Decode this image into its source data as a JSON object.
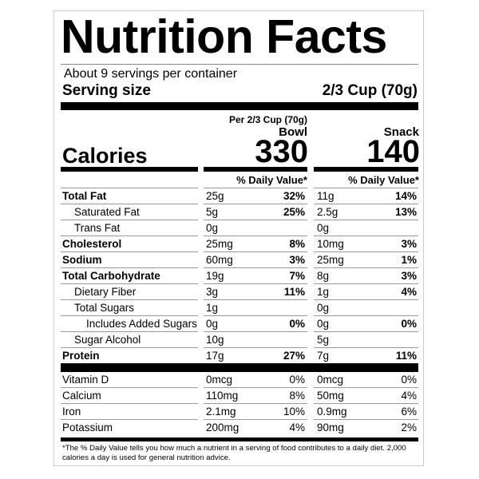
{
  "header": {
    "title": "Nutrition Facts",
    "servings": "About 9 servings per container",
    "serving_size_label": "Serving size",
    "serving_size": "2/3 Cup (70g)"
  },
  "calories_label": "Calories",
  "columns": [
    {
      "per": "Per 2/3 Cup (70g)",
      "name": "Bowl",
      "calories": "330",
      "dv_header": "% Daily Value*"
    },
    {
      "name": "Snack",
      "calories": "140",
      "dv_header": "% Daily Value*"
    }
  ],
  "rows": [
    {
      "label": "Total Fat",
      "bold": true,
      "indent": 0,
      "values": [
        [
          "25g",
          "32%"
        ],
        [
          "11g",
          "14%"
        ]
      ]
    },
    {
      "label": "Saturated Fat",
      "bold": false,
      "indent": 1,
      "values": [
        [
          "5g",
          "25%"
        ],
        [
          "2.5g",
          "13%"
        ]
      ]
    },
    {
      "label": "Trans Fat",
      "bold": false,
      "indent": 1,
      "values": [
        [
          "0g"
        ],
        [
          "0g"
        ]
      ]
    },
    {
      "label": "Cholesterol",
      "bold": true,
      "indent": 0,
      "values": [
        [
          "25mg",
          "8%"
        ],
        [
          "10mg",
          "3%"
        ]
      ]
    },
    {
      "label": "Sodium",
      "bold": true,
      "indent": 0,
      "values": [
        [
          "60mg",
          "3%"
        ],
        [
          "25mg",
          "1%"
        ]
      ]
    },
    {
      "label": "Total Carbohydrate",
      "bold": true,
      "indent": 0,
      "values": [
        [
          "19g",
          "7%"
        ],
        [
          "8g",
          "3%"
        ]
      ]
    },
    {
      "label": "Dietary Fiber",
      "bold": false,
      "indent": 1,
      "values": [
        [
          "3g",
          "11%"
        ],
        [
          "1g",
          "4%"
        ]
      ]
    },
    {
      "label": "Total Sugars",
      "bold": false,
      "indent": 1,
      "values": [
        [
          "1g"
        ],
        [
          "0g"
        ]
      ]
    },
    {
      "label": "Includes Added Sugars",
      "bold": false,
      "indent": 2,
      "values": [
        [
          "0g",
          "0%"
        ],
        [
          "0g",
          "0%"
        ]
      ]
    },
    {
      "label": "Sugar Alcohol",
      "bold": false,
      "indent": 1,
      "values": [
        [
          "10g"
        ],
        [
          "5g"
        ]
      ]
    },
    {
      "label": "Protein",
      "bold": true,
      "indent": 0,
      "values": [
        [
          "17g",
          "27%"
        ],
        [
          "7g",
          "11%"
        ]
      ]
    }
  ],
  "micros": [
    {
      "label": "Vitamin D",
      "values": [
        [
          "0mcg",
          "0%"
        ],
        [
          "0mcg",
          "0%"
        ]
      ]
    },
    {
      "label": "Calcium",
      "values": [
        [
          "110mg",
          "8%"
        ],
        [
          "50mg",
          "4%"
        ]
      ]
    },
    {
      "label": "Iron",
      "values": [
        [
          "2.1mg",
          "10%"
        ],
        [
          "0.9mg",
          "6%"
        ]
      ]
    },
    {
      "label": "Potassium",
      "values": [
        [
          "200mg",
          "4%"
        ],
        [
          "90mg",
          "2%"
        ]
      ]
    }
  ],
  "footnote": "*The % Daily Value tells you how much a nutrient in a serving of food contributes to a daily diet. 2,000 calories a day is used for general nutrition advice."
}
